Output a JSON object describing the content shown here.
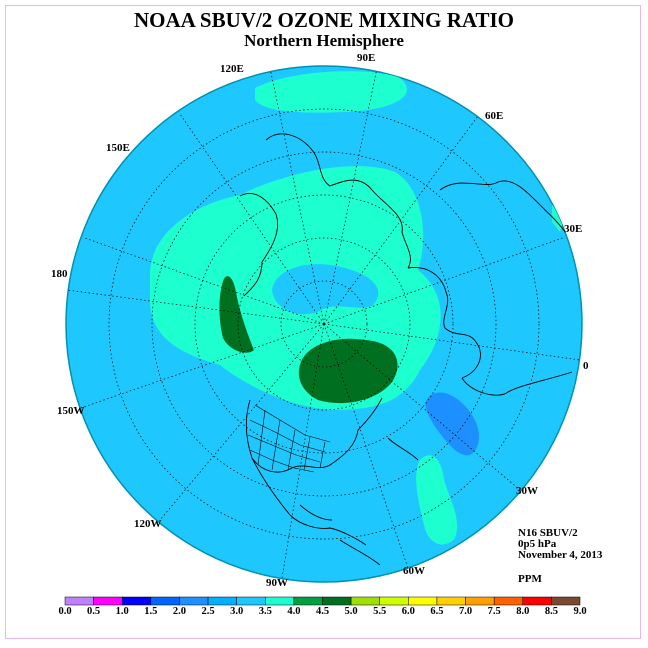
{
  "title": "NOAA SBUV/2 OZONE MIXING RATIO",
  "subtitle": "Northern Hemisphere",
  "longitude_labels": {
    "e90": "90E",
    "e120": "120E",
    "e60": "60E",
    "e150": "150E",
    "e30": "30E",
    "e180": "180",
    "e0": "0",
    "w150": "150W",
    "w30": "30W",
    "w120": "120W",
    "w60": "60W",
    "w90": "90W"
  },
  "info": {
    "instrument": "N16 SBUV/2",
    "level": "0p5 hPa",
    "date": "November 4, 2013",
    "units": "PPM"
  },
  "colorbar": {
    "labels": [
      "0.0",
      "0.5",
      "1.0",
      "1.5",
      "2.0",
      "2.5",
      "3.0",
      "3.5",
      "4.0",
      "4.5",
      "5.0",
      "5.5",
      "6.0",
      "6.5",
      "7.0",
      "7.5",
      "8.0",
      "8.5",
      "9.0"
    ],
    "colors": [
      "#c080ff",
      "#e0b0ff",
      "#ff00ff",
      "#0000ff",
      "#0066ff",
      "#1e8fff",
      "#00b0ff",
      "#1ec8ff",
      "#1effd0",
      "#00a040",
      "#007020",
      "#a0e000",
      "#d0ff00",
      "#ffff00",
      "#ffd000",
      "#ffa000",
      "#ff6000",
      "#ff0000",
      "#7a4a30"
    ]
  },
  "colors": {
    "ocean_fill": "#1ec8ff",
    "band_35_40": "#1effd0",
    "band_40_45": "#00a040",
    "band_45_50": "#007020",
    "band_25_30": "#1e8fff"
  }
}
